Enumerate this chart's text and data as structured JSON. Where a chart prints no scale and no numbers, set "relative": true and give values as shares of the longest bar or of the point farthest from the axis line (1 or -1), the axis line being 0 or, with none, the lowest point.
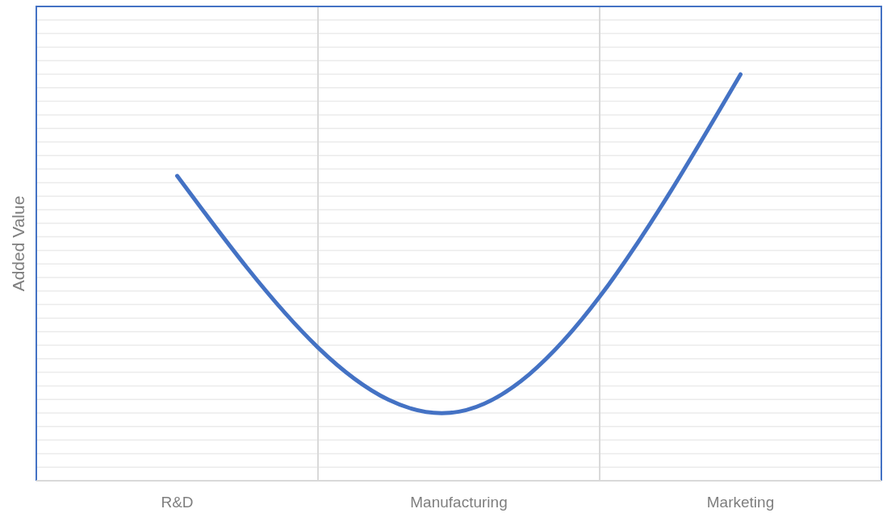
{
  "chart_data": {
    "type": "line",
    "relative": true,
    "ylabel": "Added Value",
    "categories": [
      "R&D",
      "Manufacturing",
      "Marketing"
    ],
    "series": [
      {
        "color": "#4472c4",
        "values": [
          0.75,
          0.17,
          1
        ]
      }
    ],
    "grid": true
  }
}
